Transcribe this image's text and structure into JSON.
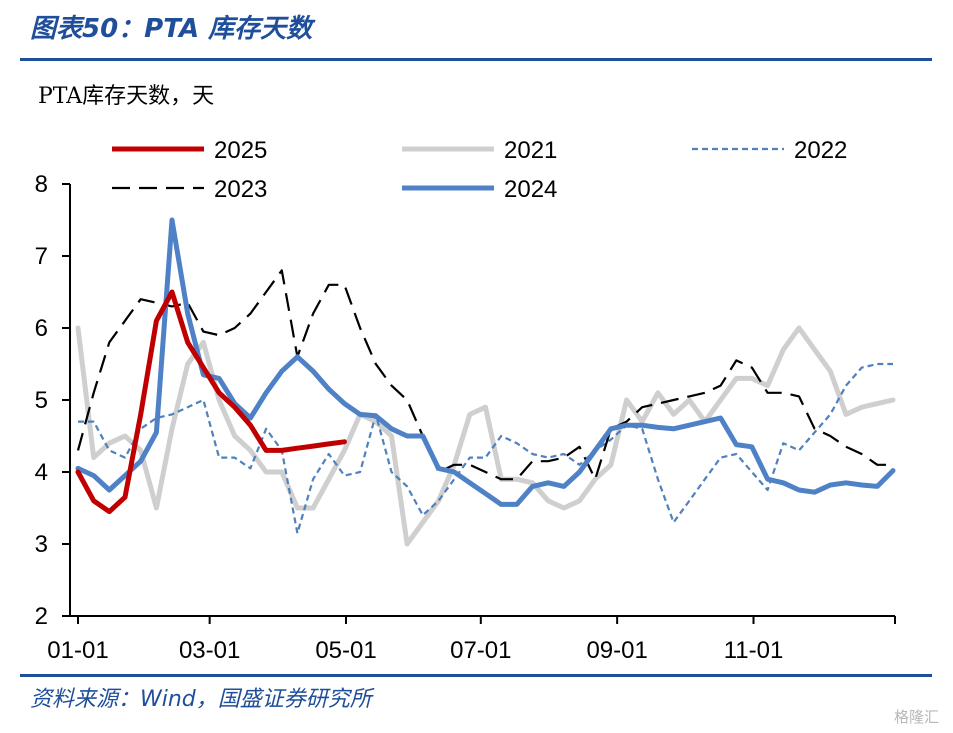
{
  "header": {
    "title": "图表50：PTA 库存天数"
  },
  "footer": {
    "source": "资料来源：Wind，国盛证券研究所",
    "watermark": "格隆汇"
  },
  "chart_data": {
    "type": "line",
    "ylabel": "PTA库存天数，天",
    "ylim": [
      2,
      8
    ],
    "yticks": [
      2,
      3,
      4,
      5,
      6,
      7,
      8
    ],
    "xlim": [
      1,
      53
    ],
    "xticks": [
      {
        "label": "01-01",
        "x": 1
      },
      {
        "label": "03-01",
        "x": 9.4
      },
      {
        "label": "05-01",
        "x": 18.1
      },
      {
        "label": "07-01",
        "x": 26.7
      },
      {
        "label": "09-01",
        "x": 35.4
      },
      {
        "label": "11-01",
        "x": 44.1
      }
    ],
    "legend_position": "top",
    "series": [
      {
        "name": "2025",
        "color": "#c00000",
        "style": "solid",
        "width": 5,
        "x": [
          1,
          2,
          3,
          4,
          5,
          6,
          7,
          8,
          9,
          10,
          11,
          12,
          13,
          14,
          15,
          16,
          17,
          18
        ],
        "y": [
          4.0,
          3.6,
          3.45,
          3.65,
          4.8,
          6.1,
          6.5,
          5.8,
          5.45,
          5.1,
          4.9,
          4.65,
          4.3,
          4.3,
          4.33,
          4.36,
          4.39,
          4.42
        ]
      },
      {
        "name": "2021",
        "color": "#cfcfcf",
        "style": "solid",
        "width": 5,
        "x": [
          1,
          2,
          3,
          4,
          5,
          6,
          7,
          8,
          9,
          10,
          11,
          12,
          13,
          14,
          15,
          16,
          17,
          18,
          19,
          20,
          21,
          22,
          23,
          24,
          25,
          26,
          27,
          28,
          29,
          30,
          31,
          32,
          33,
          34,
          35,
          36,
          37,
          38,
          39,
          40,
          41,
          42,
          43,
          44,
          45,
          46,
          47,
          48,
          49,
          50,
          51,
          52,
          53
        ],
        "y": [
          6.0,
          4.2,
          4.4,
          4.5,
          4.3,
          3.5,
          4.6,
          5.5,
          5.8,
          5.0,
          4.5,
          4.3,
          4.0,
          4.0,
          3.5,
          3.5,
          3.9,
          4.3,
          4.8,
          4.7,
          4.5,
          3.0,
          3.3,
          3.6,
          4.1,
          4.8,
          4.9,
          3.9,
          3.9,
          3.85,
          3.6,
          3.5,
          3.6,
          3.9,
          4.1,
          5.0,
          4.7,
          5.1,
          4.8,
          5.0,
          4.7,
          5.0,
          5.3,
          5.3,
          5.2,
          5.7,
          6.0,
          5.7,
          5.4,
          4.8,
          4.9,
          4.95,
          5.0
        ]
      },
      {
        "name": "2022",
        "color": "#4f81bd",
        "style": "dotted",
        "width": 2.2,
        "x": [
          1,
          2,
          3,
          4,
          5,
          6,
          7,
          8,
          9,
          10,
          11,
          12,
          13,
          14,
          15,
          16,
          17,
          18,
          19,
          20,
          21,
          22,
          23,
          24,
          25,
          26,
          27,
          28,
          29,
          30,
          31,
          32,
          33,
          34,
          35,
          36,
          37,
          38,
          39,
          40,
          41,
          42,
          43,
          44,
          45,
          46,
          47,
          48,
          49,
          50,
          51,
          52,
          53
        ],
        "y": [
          4.7,
          4.7,
          4.3,
          4.2,
          4.6,
          4.75,
          4.8,
          4.9,
          5.0,
          4.2,
          4.2,
          4.05,
          4.6,
          4.3,
          3.15,
          3.9,
          4.25,
          3.95,
          4.0,
          4.8,
          4.0,
          3.8,
          3.4,
          3.6,
          3.9,
          4.2,
          4.2,
          4.5,
          4.4,
          4.25,
          4.2,
          4.25,
          4.1,
          4.3,
          4.45,
          4.65,
          4.6,
          3.9,
          3.3,
          3.6,
          3.9,
          4.2,
          4.25,
          4.0,
          3.75,
          4.4,
          4.3,
          4.55,
          4.8,
          5.2,
          5.45,
          5.5,
          5.5
        ]
      },
      {
        "name": "2023",
        "color": "#000000",
        "style": "dashed",
        "width": 2.2,
        "x": [
          1,
          2,
          3,
          4,
          5,
          6,
          7,
          8,
          9,
          10,
          11,
          12,
          13,
          14,
          15,
          16,
          17,
          18,
          19,
          20,
          21,
          22,
          23,
          24,
          25,
          26,
          27,
          28,
          29,
          30,
          31,
          32,
          33,
          34,
          35,
          36,
          37,
          38,
          39,
          40,
          41,
          42,
          43,
          44,
          45,
          46,
          47,
          48,
          49,
          50,
          51,
          52,
          53
        ],
        "y": [
          4.3,
          5.1,
          5.8,
          6.1,
          6.4,
          6.35,
          6.3,
          6.35,
          5.95,
          5.9,
          6.0,
          6.2,
          6.5,
          6.8,
          5.6,
          6.2,
          6.6,
          6.6,
          6.0,
          5.5,
          5.2,
          5.0,
          4.5,
          4.0,
          4.1,
          4.1,
          4.0,
          3.9,
          3.9,
          4.15,
          4.15,
          4.2,
          4.35,
          3.9,
          4.6,
          4.7,
          4.9,
          4.95,
          5.0,
          5.05,
          5.1,
          5.2,
          5.55,
          5.45,
          5.1,
          5.1,
          5.05,
          4.6,
          4.5,
          4.35,
          4.25,
          4.1,
          4.1
        ]
      },
      {
        "name": "2024",
        "color": "#4f81c7",
        "style": "solid",
        "width": 5,
        "x": [
          1,
          2,
          3,
          4,
          5,
          6,
          7,
          8,
          9,
          10,
          11,
          12,
          13,
          14,
          15,
          16,
          17,
          18,
          19,
          20,
          21,
          22,
          23,
          24,
          25,
          26,
          27,
          28,
          29,
          30,
          31,
          32,
          33,
          34,
          35,
          36,
          37,
          38,
          39,
          40,
          41,
          42,
          43,
          44,
          45,
          46,
          47,
          48,
          49,
          50,
          51,
          52,
          53
        ],
        "y": [
          4.05,
          3.95,
          3.75,
          3.95,
          4.15,
          4.55,
          7.5,
          6.2,
          5.35,
          5.3,
          4.95,
          4.75,
          5.1,
          5.4,
          5.6,
          5.4,
          5.15,
          4.95,
          4.8,
          4.78,
          4.6,
          4.5,
          4.5,
          4.05,
          4.0,
          3.85,
          3.7,
          3.55,
          3.55,
          3.8,
          3.85,
          3.8,
          4.0,
          4.3,
          4.6,
          4.65,
          4.65,
          4.62,
          4.6,
          4.65,
          4.7,
          4.75,
          4.38,
          4.35,
          3.9,
          3.85,
          3.75,
          3.72,
          3.82,
          3.85,
          3.82,
          3.8,
          4.02
        ]
      }
    ]
  }
}
